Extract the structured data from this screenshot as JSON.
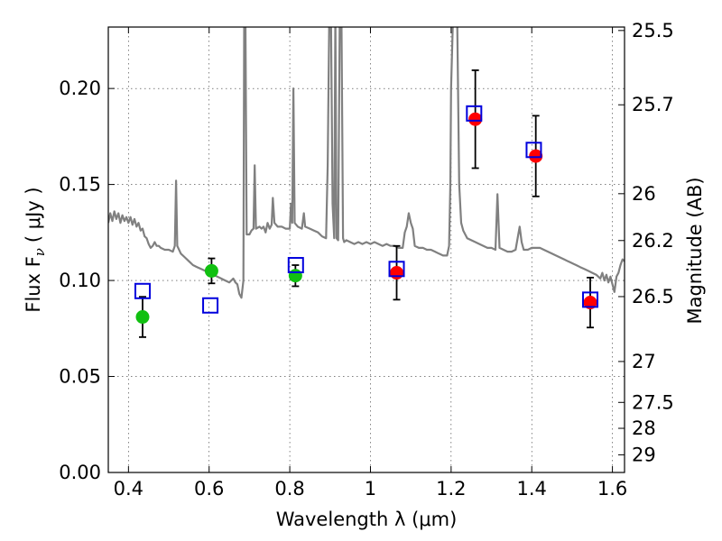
{
  "chart_data": {
    "type": "scatter",
    "xlabel": "Wavelength  λ (μm)",
    "ylabel": "Flux  F",
    "ylabel_sub": "ν",
    "ylabel_unit": "( μJy )",
    "y2label": "Magnitude (AB)",
    "xlim": [
      0.35,
      1.63
    ],
    "ylim": [
      0.0,
      0.232
    ],
    "grid": true,
    "x_ticks": [
      0.4,
      0.6,
      0.8,
      1.0,
      1.2,
      1.4,
      1.6
    ],
    "x_tick_labels": [
      "0.4",
      "0.6",
      "0.8",
      "1",
      "1.2",
      "1.4",
      "1.6"
    ],
    "y_ticks": [
      0.0,
      0.05,
      0.1,
      0.15,
      0.2
    ],
    "y_tick_labels": [
      "0.00",
      "0.05",
      "0.10",
      "0.15",
      "0.20"
    ],
    "y2_ticks": [
      {
        "label": "25.5",
        "flux": 0.2302
      },
      {
        "label": "25.7",
        "flux": 0.1915
      },
      {
        "label": "26",
        "flux": 0.1452
      },
      {
        "label": "26.2",
        "flux": 0.1208
      },
      {
        "label": "26.5",
        "flux": 0.0916
      },
      {
        "label": "27",
        "flux": 0.0578
      },
      {
        "label": "27.5",
        "flux": 0.0365
      },
      {
        "label": "28",
        "flux": 0.023
      },
      {
        "label": "29",
        "flux": 0.0092
      }
    ],
    "colors": {
      "green": "#11c011",
      "red": "#ff0000",
      "blue_open_square": "#0000dd",
      "spectrum": "#808080"
    },
    "series": [
      {
        "marker": "green-circle",
        "points": [
          {
            "x": 0.435,
            "y": 0.081,
            "yerr": 0.0105
          },
          {
            "x": 0.606,
            "y": 0.105,
            "yerr": 0.0065
          },
          {
            "x": 0.814,
            "y": 0.1025,
            "yerr": 0.0055
          }
        ]
      },
      {
        "marker": "red-circle",
        "points": [
          {
            "x": 1.065,
            "y": 0.104,
            "yerr": 0.014
          },
          {
            "x": 1.26,
            "y": 0.184,
            "yerr": 0.0255
          },
          {
            "x": 1.41,
            "y": 0.1648,
            "yerr": 0.021
          },
          {
            "x": 1.545,
            "y": 0.0885,
            "yerr": 0.013
          }
        ]
      },
      {
        "marker": "blue-open-square",
        "points": [
          {
            "x": 0.435,
            "y": 0.0945
          },
          {
            "x": 0.603,
            "y": 0.087
          },
          {
            "x": 0.815,
            "y": 0.108
          },
          {
            "x": 1.065,
            "y": 0.106
          },
          {
            "x": 1.257,
            "y": 0.187
          },
          {
            "x": 1.405,
            "y": 0.168
          },
          {
            "x": 1.545,
            "y": 0.09
          }
        ]
      }
    ],
    "spectrum": {
      "color": "#808080",
      "points": [
        [
          0.35,
          0.13
        ],
        [
          0.355,
          0.135
        ],
        [
          0.36,
          0.131
        ],
        [
          0.365,
          0.136
        ],
        [
          0.37,
          0.132
        ],
        [
          0.375,
          0.135
        ],
        [
          0.38,
          0.13
        ],
        [
          0.385,
          0.134
        ],
        [
          0.39,
          0.131
        ],
        [
          0.395,
          0.133
        ],
        [
          0.4,
          0.13
        ],
        [
          0.405,
          0.133
        ],
        [
          0.41,
          0.129
        ],
        [
          0.415,
          0.132
        ],
        [
          0.42,
          0.128
        ],
        [
          0.425,
          0.13
        ],
        [
          0.43,
          0.126
        ],
        [
          0.435,
          0.127
        ],
        [
          0.44,
          0.123
        ],
        [
          0.445,
          0.122
        ],
        [
          0.45,
          0.119
        ],
        [
          0.455,
          0.117
        ],
        [
          0.46,
          0.118
        ],
        [
          0.465,
          0.12
        ],
        [
          0.47,
          0.118
        ],
        [
          0.475,
          0.118
        ],
        [
          0.48,
          0.117
        ],
        [
          0.49,
          0.116
        ],
        [
          0.5,
          0.116
        ],
        [
          0.51,
          0.115
        ],
        [
          0.515,
          0.118
        ],
        [
          0.518,
          0.152
        ],
        [
          0.521,
          0.118
        ],
        [
          0.53,
          0.114
        ],
        [
          0.54,
          0.112
        ],
        [
          0.55,
          0.11
        ],
        [
          0.56,
          0.108
        ],
        [
          0.57,
          0.107
        ],
        [
          0.58,
          0.106
        ],
        [
          0.59,
          0.105
        ],
        [
          0.6,
          0.104
        ],
        [
          0.61,
          0.103
        ],
        [
          0.62,
          0.102
        ],
        [
          0.63,
          0.101
        ],
        [
          0.64,
          0.1
        ],
        [
          0.65,
          0.099
        ],
        [
          0.655,
          0.1
        ],
        [
          0.66,
          0.101
        ],
        [
          0.665,
          0.099
        ],
        [
          0.67,
          0.098
        ],
        [
          0.675,
          0.093
        ],
        [
          0.68,
          0.091
        ],
        [
          0.685,
          0.1
        ],
        [
          0.687,
          0.24
        ],
        [
          0.69,
          0.24
        ],
        [
          0.693,
          0.124
        ],
        [
          0.7,
          0.124
        ],
        [
          0.705,
          0.126
        ],
        [
          0.71,
          0.127
        ],
        [
          0.713,
          0.16
        ],
        [
          0.716,
          0.127
        ],
        [
          0.725,
          0.128
        ],
        [
          0.73,
          0.127
        ],
        [
          0.735,
          0.128
        ],
        [
          0.74,
          0.125
        ],
        [
          0.745,
          0.13
        ],
        [
          0.75,
          0.127
        ],
        [
          0.755,
          0.129
        ],
        [
          0.758,
          0.143
        ],
        [
          0.762,
          0.13
        ],
        [
          0.77,
          0.128
        ],
        [
          0.78,
          0.128
        ],
        [
          0.79,
          0.127
        ],
        [
          0.8,
          0.127
        ],
        [
          0.803,
          0.14
        ],
        [
          0.806,
          0.13
        ],
        [
          0.809,
          0.2
        ],
        [
          0.812,
          0.13
        ],
        [
          0.82,
          0.128
        ],
        [
          0.83,
          0.127
        ],
        [
          0.835,
          0.135
        ],
        [
          0.838,
          0.128
        ],
        [
          0.85,
          0.127
        ],
        [
          0.86,
          0.126
        ],
        [
          0.87,
          0.125
        ],
        [
          0.88,
          0.123
        ],
        [
          0.89,
          0.122
        ],
        [
          0.894,
          0.16
        ],
        [
          0.898,
          0.24
        ],
        [
          0.902,
          0.24
        ],
        [
          0.906,
          0.14
        ],
        [
          0.91,
          0.122
        ],
        [
          0.913,
          0.24
        ],
        [
          0.916,
          0.122
        ],
        [
          0.92,
          0.121
        ],
        [
          0.924,
          0.24
        ],
        [
          0.928,
          0.24
        ],
        [
          0.932,
          0.122
        ],
        [
          0.935,
          0.12
        ],
        [
          0.94,
          0.121
        ],
        [
          0.95,
          0.12
        ],
        [
          0.96,
          0.119
        ],
        [
          0.97,
          0.12
        ],
        [
          0.98,
          0.119
        ],
        [
          0.99,
          0.12
        ],
        [
          1.0,
          0.119
        ],
        [
          1.01,
          0.12
        ],
        [
          1.02,
          0.119
        ],
        [
          1.03,
          0.118
        ],
        [
          1.04,
          0.119
        ],
        [
          1.05,
          0.118
        ],
        [
          1.06,
          0.118
        ],
        [
          1.07,
          0.117
        ],
        [
          1.08,
          0.117
        ],
        [
          1.085,
          0.125
        ],
        [
          1.09,
          0.128
        ],
        [
          1.095,
          0.135
        ],
        [
          1.1,
          0.13
        ],
        [
          1.105,
          0.127
        ],
        [
          1.11,
          0.118
        ],
        [
          1.12,
          0.117
        ],
        [
          1.13,
          0.117
        ],
        [
          1.14,
          0.116
        ],
        [
          1.15,
          0.116
        ],
        [
          1.16,
          0.115
        ],
        [
          1.17,
          0.114
        ],
        [
          1.18,
          0.113
        ],
        [
          1.19,
          0.113
        ],
        [
          1.195,
          0.118
        ],
        [
          1.198,
          0.15
        ],
        [
          1.2,
          0.2
        ],
        [
          1.205,
          0.24
        ],
        [
          1.215,
          0.24
        ],
        [
          1.22,
          0.15
        ],
        [
          1.225,
          0.13
        ],
        [
          1.23,
          0.126
        ],
        [
          1.24,
          0.122
        ],
        [
          1.25,
          0.121
        ],
        [
          1.26,
          0.12
        ],
        [
          1.27,
          0.119
        ],
        [
          1.28,
          0.118
        ],
        [
          1.29,
          0.117
        ],
        [
          1.3,
          0.117
        ],
        [
          1.31,
          0.116
        ],
        [
          1.315,
          0.145
        ],
        [
          1.32,
          0.117
        ],
        [
          1.33,
          0.116
        ],
        [
          1.34,
          0.115
        ],
        [
          1.35,
          0.115
        ],
        [
          1.36,
          0.116
        ],
        [
          1.37,
          0.128
        ],
        [
          1.375,
          0.12
        ],
        [
          1.38,
          0.116
        ],
        [
          1.39,
          0.116
        ],
        [
          1.4,
          0.117
        ],
        [
          1.41,
          0.117
        ],
        [
          1.42,
          0.117
        ],
        [
          1.43,
          0.116
        ],
        [
          1.44,
          0.115
        ],
        [
          1.45,
          0.114
        ],
        [
          1.46,
          0.113
        ],
        [
          1.47,
          0.112
        ],
        [
          1.48,
          0.111
        ],
        [
          1.49,
          0.11
        ],
        [
          1.5,
          0.109
        ],
        [
          1.51,
          0.108
        ],
        [
          1.52,
          0.107
        ],
        [
          1.53,
          0.106
        ],
        [
          1.54,
          0.105
        ],
        [
          1.55,
          0.104
        ],
        [
          1.56,
          0.103
        ],
        [
          1.57,
          0.101
        ],
        [
          1.575,
          0.104
        ],
        [
          1.58,
          0.1
        ],
        [
          1.585,
          0.103
        ],
        [
          1.59,
          0.099
        ],
        [
          1.595,
          0.102
        ],
        [
          1.6,
          0.098
        ],
        [
          1.605,
          0.094
        ],
        [
          1.61,
          0.102
        ],
        [
          1.615,
          0.104
        ],
        [
          1.62,
          0.108
        ],
        [
          1.625,
          0.111
        ],
        [
          1.63,
          0.11
        ]
      ]
    }
  }
}
